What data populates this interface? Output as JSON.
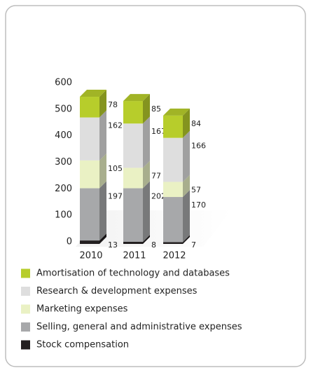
{
  "chart_data": {
    "type": "stacked_bar_3d",
    "categories": [
      "2010",
      "2011",
      "2012"
    ],
    "series": [
      {
        "name": "Stock compensation",
        "color": "#231f20",
        "values": [
          13,
          8,
          7
        ]
      },
      {
        "name": "Selling, general and administrative expenses",
        "color": "#a7a8aa",
        "values": [
          197,
          202,
          170
        ]
      },
      {
        "name": "Marketing expenses",
        "color": "#eaf1c4",
        "values": [
          105,
          77,
          57
        ]
      },
      {
        "name": "Research & development expenses",
        "color": "#dedede",
        "values": [
          162,
          167,
          166
        ]
      },
      {
        "name": "Amortisation of technology and databases",
        "color": "#b7cd2b",
        "values": [
          78,
          85,
          84
        ]
      }
    ],
    "ylim": [
      0,
      600
    ],
    "yticks": [
      0,
      100,
      200,
      300,
      400,
      500,
      600
    ],
    "grid": false,
    "legend": "bottom"
  }
}
